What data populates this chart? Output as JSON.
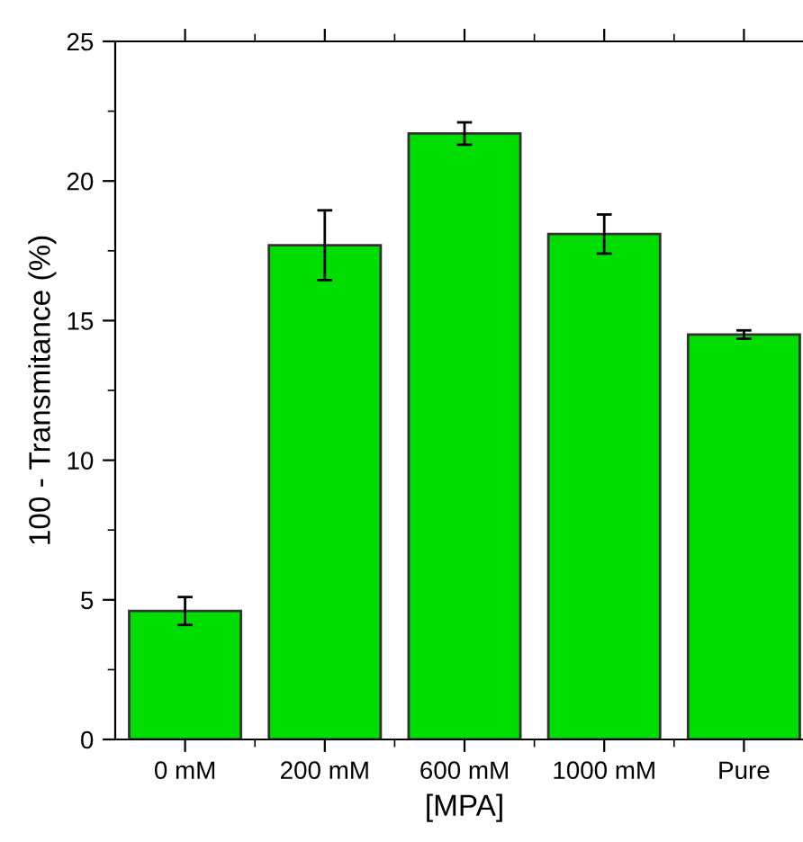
{
  "chart_data": {
    "type": "bar",
    "xlabel": "[MPA]",
    "ylabel": "100 - Transmitance (%)",
    "categories": [
      "0 mM",
      "200 mM",
      "600 mM",
      "1000 mM",
      "Pure"
    ],
    "values": [
      4.6,
      17.7,
      21.7,
      18.1,
      14.5
    ],
    "errors": [
      0.5,
      1.25,
      0.4,
      0.7,
      0.15
    ],
    "color": "#00dd00",
    "ylim": [
      0,
      25
    ],
    "yticks": [
      0,
      5,
      10,
      15,
      20,
      25
    ],
    "grid": false,
    "legend": false
  }
}
